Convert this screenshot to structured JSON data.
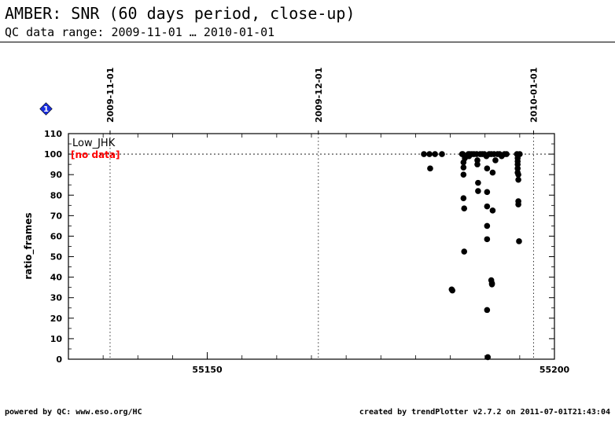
{
  "header": {
    "title": "AMBER: SNR (60 days period, close-up)",
    "subtitle": "QC data range: 2009-11-01 … 2010-01-01"
  },
  "footer": {
    "powered_by": "powered by QC: www.eso.org/HC",
    "created_by": "created by trendPlotter v2.7.2 on 2011-07-01T21:43:04"
  },
  "badge": {
    "label": "1",
    "color": "#1a2ee0"
  },
  "chart_data": {
    "type": "scatter",
    "title": "",
    "xlabel": "",
    "ylabel": "ratio_frames",
    "xlim": [
      55130,
      55200
    ],
    "ylim": [
      0,
      110
    ],
    "x_ticks": [
      55150,
      55200
    ],
    "x_ticks_labeled": [
      55150,
      55200
    ],
    "x_minor_ticks": [
      55130,
      55135,
      55140,
      55145,
      55150,
      55155,
      55160,
      55165,
      55170,
      55175,
      55180,
      55185,
      55190,
      55195,
      55200
    ],
    "y_ticks": [
      0,
      10,
      20,
      30,
      40,
      50,
      60,
      70,
      80,
      90,
      100,
      110
    ],
    "reference_line": 100,
    "date_markers": [
      {
        "label": "2009-11-01",
        "mjd": 55136
      },
      {
        "label": "2009-12-01",
        "mjd": 55166
      },
      {
        "label": "2010-01-01",
        "mjd": 55197
      }
    ],
    "legend": {
      "series_label": "Low_JHK",
      "status_label": "[no data]",
      "status_color": "#ff0000"
    },
    "series": [
      {
        "color": "#000000",
        "points": [
          [
            55181.2,
            100
          ],
          [
            55182.0,
            100
          ],
          [
            55182.1,
            93
          ],
          [
            55182.8,
            100
          ],
          [
            55183.8,
            100
          ],
          [
            55185.2,
            34
          ],
          [
            55185.3,
            33.5
          ],
          [
            55186.7,
            100
          ],
          [
            55186.8,
            100
          ],
          [
            55186.9,
            96
          ],
          [
            55186.9,
            93.5
          ],
          [
            55186.9,
            90
          ],
          [
            55186.9,
            78.5
          ],
          [
            55187.0,
            73.5
          ],
          [
            55187.0,
            52.5
          ],
          [
            55187.1,
            98
          ],
          [
            55187.1,
            99
          ],
          [
            55187.6,
            100
          ],
          [
            55187.7,
            99
          ],
          [
            55187.8,
            100
          ],
          [
            55188.1,
            100
          ],
          [
            55188.4,
            100
          ],
          [
            55188.8,
            100
          ],
          [
            55188.9,
            97
          ],
          [
            55188.9,
            95
          ],
          [
            55189.0,
            86
          ],
          [
            55189.0,
            82
          ],
          [
            55189.3,
            100
          ],
          [
            55189.6,
            100
          ],
          [
            55189.9,
            100
          ],
          [
            55190.2,
            99
          ],
          [
            55190.3,
            93
          ],
          [
            55190.3,
            81.5
          ],
          [
            55190.3,
            74.5
          ],
          [
            55190.3,
            65
          ],
          [
            55190.3,
            58.5
          ],
          [
            55190.3,
            24
          ],
          [
            55190.4,
            1
          ],
          [
            55190.6,
            100
          ],
          [
            55190.9,
            100
          ],
          [
            55190.9,
            38.5
          ],
          [
            55191.0,
            37
          ],
          [
            55191.0,
            36.5
          ],
          [
            55191.1,
            72.5
          ],
          [
            55191.1,
            91
          ],
          [
            55191.3,
            100
          ],
          [
            55191.5,
            97
          ],
          [
            55191.8,
            100
          ],
          [
            55192.1,
            100
          ],
          [
            55192.4,
            99
          ],
          [
            55192.8,
            100
          ],
          [
            55193.1,
            100
          ],
          [
            55194.6,
            100
          ],
          [
            55194.7,
            98
          ],
          [
            55194.7,
            96.5
          ],
          [
            55194.7,
            95
          ],
          [
            55194.7,
            93
          ],
          [
            55194.7,
            91
          ],
          [
            55194.8,
            90
          ],
          [
            55194.8,
            87.5
          ],
          [
            55194.8,
            77
          ],
          [
            55194.8,
            75.5
          ],
          [
            55194.9,
            57.5
          ],
          [
            55195.0,
            100
          ]
        ]
      }
    ]
  }
}
